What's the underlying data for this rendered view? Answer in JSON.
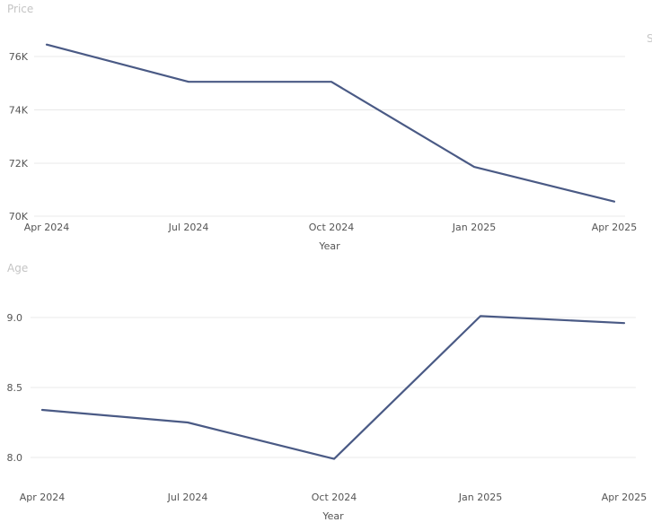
{
  "chart_data": [
    {
      "type": "line",
      "title": "",
      "ylabel": "Price",
      "xlabel": "Year",
      "categories": [
        "Apr 2024",
        "Jul 2024",
        "Oct 2024",
        "Jan 2025",
        "Apr 2025"
      ],
      "series": [
        {
          "values": [
            76450,
            75050,
            75050,
            71850,
            70550
          ]
        }
      ],
      "ylim": [
        70000,
        77200
      ],
      "yticks": [
        70000,
        72000,
        74000,
        76000
      ],
      "ytick_labels": [
        "70K",
        "72K",
        "74K",
        "76K"
      ],
      "grid": true,
      "legend": "top-right",
      "legend_fragment": "S"
    },
    {
      "type": "line",
      "title": "",
      "ylabel": "Age",
      "xlabel": "Year",
      "categories": [
        "Apr 2024",
        "Jul 2024",
        "Oct 2024",
        "Jan 2025",
        "Apr 2025"
      ],
      "series": [
        {
          "values": [
            8.34,
            8.25,
            7.99,
            9.01,
            8.96
          ]
        }
      ],
      "ylim": [
        7.95,
        9.25
      ],
      "yticks": [
        8.0,
        8.5,
        9.0
      ],
      "ytick_labels": [
        "8.0",
        "8.5",
        "9.0"
      ],
      "grid": true
    }
  ],
  "colors": {
    "line": "#4a5a85",
    "grid": "#e8e8e8"
  }
}
